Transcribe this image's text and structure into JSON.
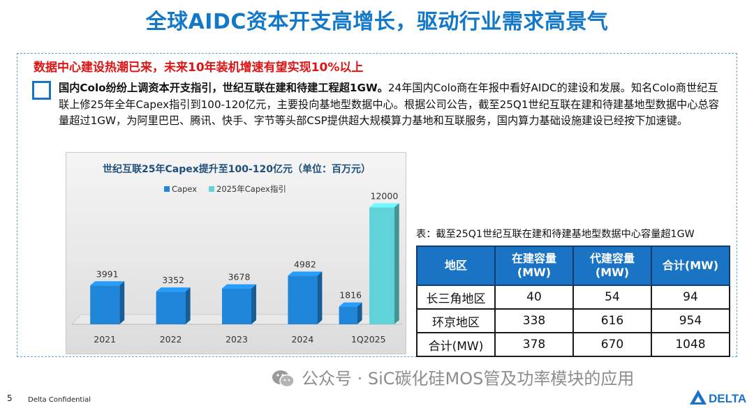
{
  "title": "全球AIDC资本开支高增长，驱动行业需求高景气",
  "headline": "数据中心建设热潮已来，未来10年装机增速有望实现10%以上",
  "paragraph": {
    "bold": "国内Colo纷纷上调资本开支指引，世纪互联在建和待建工程超1GW。",
    "text": "24年国内Colo商在年报中看好AIDC的建设和发展。知名Colo商世纪互联上修25年全年Capex指引到100-120亿元，主要投向基地型数据中心。根据公司公告，截至25Q1世纪互联在建和待建基地型数据中心总容量超过1GW，为阿里巴巴、腾讯、快手、字节等头部CSP提供超大规模算力基地和互联服务，国内算力基础设施建设已经按下加速键。"
  },
  "chart_data": {
    "type": "bar",
    "title": "世纪互联25年Capex提升至100-120亿元（单位：百万元）",
    "categories": [
      "2021",
      "2022",
      "2023",
      "2024",
      "1Q2025"
    ],
    "series": [
      {
        "name": "Capex",
        "values": [
          3991,
          3352,
          3678,
          4982,
          1816
        ],
        "color": "#1f86d9"
      },
      {
        "name": "2025年Capex指引",
        "values": [
          null,
          null,
          null,
          null,
          12000
        ],
        "color": "#5fd3d8"
      }
    ],
    "ylim": [
      0,
      12600
    ],
    "grid": false,
    "legend": "top"
  },
  "table": {
    "caption": "表：截至25Q1世纪互联在建和待建基地型数据中心容量超1GW",
    "headers": [
      "地区",
      "在建容量\n(MW)",
      "代建容量\n(MW)",
      "合计(MW)"
    ],
    "rows": [
      [
        "长三角地区",
        "40",
        "54",
        "94"
      ],
      [
        "环京地区",
        "338",
        "616",
        "954"
      ],
      [
        "合计(MW)",
        "378",
        "670",
        "1048"
      ]
    ]
  },
  "watermark": "公众号 · SiC碳化硅MOS管及功率模块的应用",
  "footer": {
    "page_number": "5",
    "confidential": "Delta Confidential",
    "logo_text": "DELTA"
  },
  "colors": {
    "title": "#1478c8",
    "headline": "#e01414",
    "table_header": "#1b73c4"
  }
}
